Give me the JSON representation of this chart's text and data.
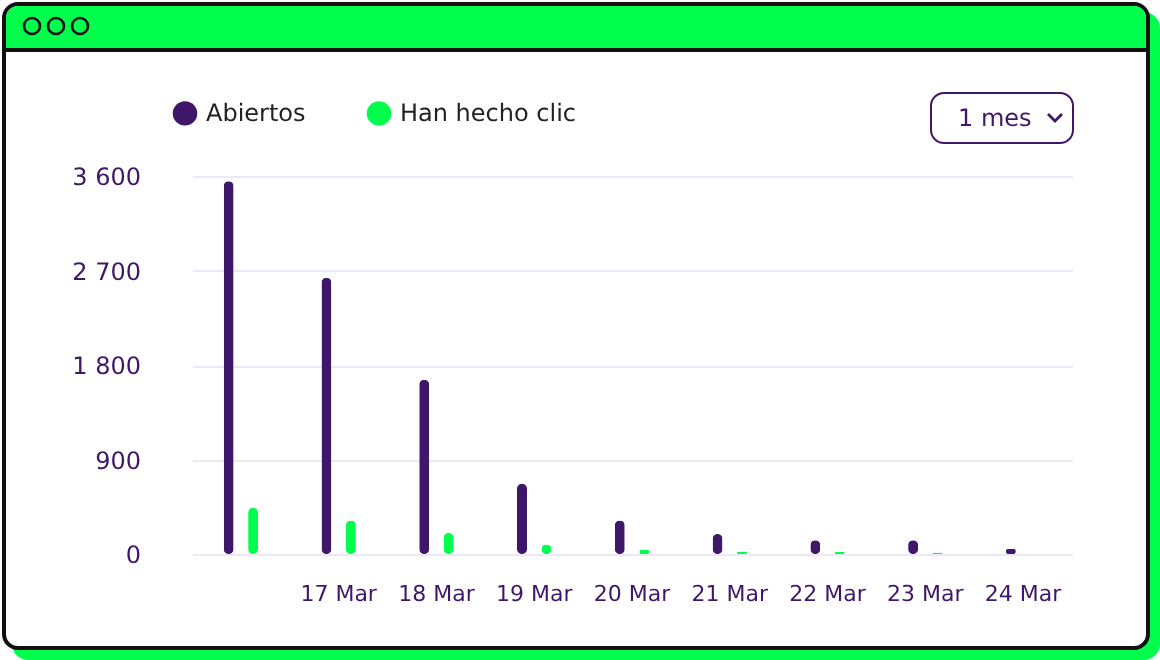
{
  "chart_data": {
    "type": "bar",
    "categories": [
      null,
      "17 Mar",
      "18 Mar",
      "19 Mar",
      "20 Mar",
      "21 Mar",
      "22 Mar",
      "23 Mar",
      "24 Mar"
    ],
    "series": [
      {
        "name": "Abiertos",
        "color": "#3f1769",
        "values": [
          3550,
          2630,
          1660,
          670,
          320,
          190,
          130,
          130,
          50
        ]
      },
      {
        "name": "Han hecho clic",
        "color": "#00ff4c",
        "values": [
          440,
          320,
          200,
          90,
          40,
          25,
          20,
          15,
          0
        ]
      }
    ],
    "ylim": [
      0,
      3600
    ],
    "yticks": [
      {
        "value": 0,
        "label": "0"
      },
      {
        "value": 900,
        "label": "900"
      },
      {
        "value": 1800,
        "label": "1 800"
      },
      {
        "value": 2700,
        "label": "2 700"
      },
      {
        "value": 3600,
        "label": "3 600"
      }
    ],
    "grid": "y",
    "legend": "top left",
    "annotations": [
      "1 mes"
    ]
  }
}
